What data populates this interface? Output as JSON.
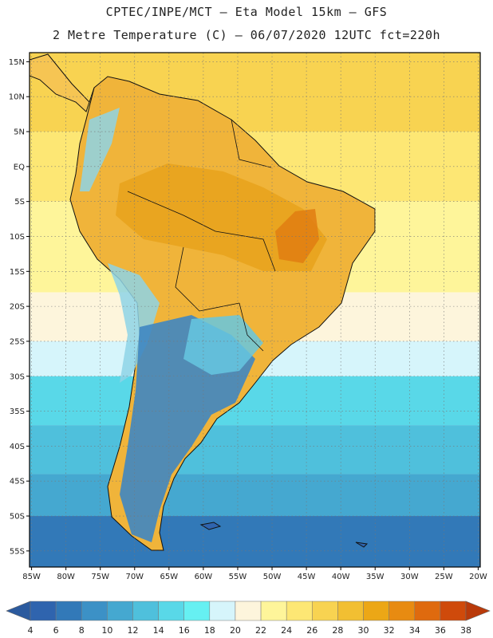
{
  "header": {
    "line1": "CPTEC/INPE/MCT –  Eta Model 15km – GFS",
    "line2": "2 Metre Temperature (C) – 06/07/2020 12UTC fct=220h"
  },
  "map": {
    "variable": "2 Metre Temperature",
    "lat_labels": [
      "15N",
      "10N",
      "5N",
      "EQ",
      "5S",
      "10S",
      "15S",
      "20S",
      "25S",
      "30S",
      "35S",
      "40S",
      "45S",
      "50S",
      "55S"
    ],
    "lat_values": [
      15,
      10,
      5,
      0,
      -5,
      -10,
      -15,
      -20,
      -25,
      -30,
      -35,
      -40,
      -45,
      -50,
      -55
    ],
    "lon_labels": [
      "85W",
      "80W",
      "75W",
      "70W",
      "65W",
      "60W",
      "55W",
      "50W",
      "45W",
      "40W",
      "35W",
      "30W",
      "25W",
      "20W"
    ],
    "lon_values": [
      -85,
      -80,
      -75,
      -70,
      -65,
      -60,
      -55,
      -50,
      -45,
      -40,
      -35,
      -30,
      -25,
      -20
    ],
    "lon_range": [
      -85.3,
      -19.7
    ],
    "lat_range": [
      -57.3,
      16.3
    ],
    "grid": true,
    "ocean_bands": [
      {
        "lat_top": 16.3,
        "lat_bottom": 5,
        "value": 27
      },
      {
        "lat_top": 5,
        "lat_bottom": -5,
        "value": 25
      },
      {
        "lat_top": -5,
        "lat_bottom": -18,
        "value": 23
      },
      {
        "lat_top": -18,
        "lat_bottom": -25,
        "value": 21
      },
      {
        "lat_top": -25,
        "lat_bottom": -30,
        "value": 19
      },
      {
        "lat_top": -30,
        "lat_bottom": -37,
        "value": 15
      },
      {
        "lat_top": -37,
        "lat_bottom": -44,
        "value": 13
      },
      {
        "lat_top": -44,
        "lat_bottom": -50,
        "value": 11
      },
      {
        "lat_top": -50,
        "lat_bottom": -57.3,
        "value": 7
      }
    ]
  },
  "colorbar": {
    "ticks": [
      "4",
      "6",
      "8",
      "10",
      "12",
      "14",
      "16",
      "18",
      "20",
      "22",
      "24",
      "26",
      "28",
      "30",
      "32",
      "34",
      "36",
      "38"
    ],
    "colors": [
      "#2f64ae",
      "#3279b8",
      "#3c91c6",
      "#45a8d0",
      "#4fc0dc",
      "#59d8e8",
      "#66f0f2",
      "#d6f5fb",
      "#fdf5dc",
      "#fef59a",
      "#fde774",
      "#f8d351",
      "#f2bf32",
      "#eca716",
      "#e88b11",
      "#df6a0e",
      "#cf4a0b"
    ],
    "under_color": "#2b5a9e",
    "over_color": "#b93a0a"
  },
  "colors": {
    "coastline": "#111111",
    "grid": "#777777",
    "frame": "#000000"
  }
}
